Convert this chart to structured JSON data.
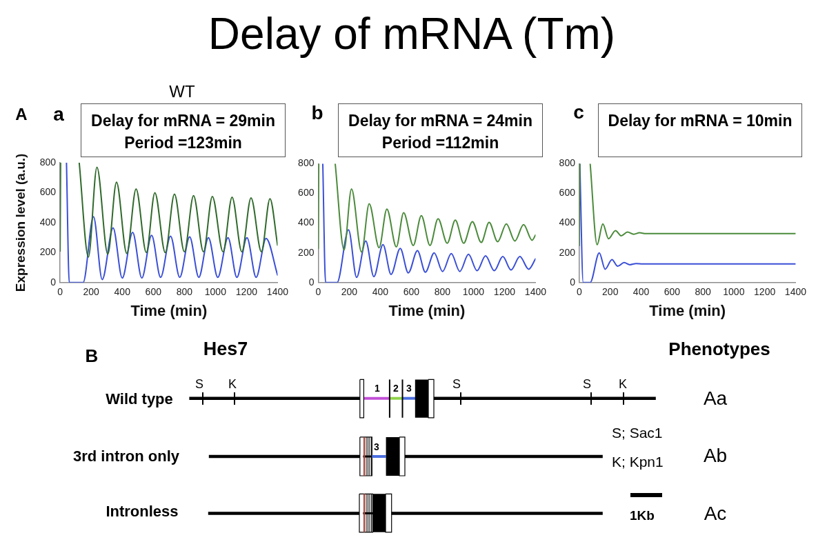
{
  "chart_data": [
    {
      "type": "other",
      "title": "Delay of mRNA (Tm)"
    },
    {
      "type": "line",
      "title": "Delay for mRNA = 29min",
      "subtitle": "Period =123min",
      "xlabel": "Time (min)",
      "ylabel": "Expression level (a.u.)",
      "annotations": [
        "WT",
        "A",
        "a"
      ],
      "xlim": [
        0,
        1400
      ],
      "xticks": [
        0,
        200,
        400,
        600,
        800,
        1000,
        1200,
        1400
      ],
      "ylim": [
        0,
        800
      ],
      "yticks": [
        0,
        200,
        400,
        600,
        800
      ],
      "series": [
        {
          "color": "#2f6a2a",
          "x": [
            0,
            3,
            60,
            123,
            182,
            237,
            307,
            363,
            429,
            489,
            555,
            610,
            677,
            736,
            800,
            859,
            923,
            980,
            1049,
            1107,
            1170,
            1229,
            1296,
            1351,
            1400
          ],
          "values": [
            210,
            800,
            null,
            800,
            170,
            770,
            190,
            670,
            195,
            625,
            200,
            600,
            200,
            590,
            205,
            580,
            205,
            575,
            205,
            570,
            205,
            565,
            205,
            560,
            250
          ]
        },
        {
          "color": "#3a4fd6",
          "x": [
            41,
            59,
            148,
            215,
            271,
            341,
            400,
            467,
            526,
            589,
            647,
            711,
            770,
            834,
            893,
            955,
            1015,
            1081,
            1138,
            1203,
            1262,
            1326,
            1400
          ],
          "values": [
            800,
            0,
            0,
            440,
            20,
            365,
            30,
            335,
            30,
            315,
            35,
            310,
            35,
            305,
            35,
            300,
            35,
            300,
            35,
            300,
            35,
            295,
            50
          ]
        }
      ]
    },
    {
      "type": "line",
      "title": "Delay for mRNA = 24min",
      "subtitle": "Period =112min",
      "xlabel": "Time (min)",
      "annotations": [
        "b"
      ],
      "xlim": [
        0,
        1400
      ],
      "xticks": [
        0,
        200,
        400,
        600,
        800,
        1000,
        1200,
        1400
      ],
      "ylim": [
        0,
        800
      ],
      "yticks": [
        0,
        200,
        400,
        600,
        800
      ],
      "series": [
        {
          "color": "#4a8a3a",
          "x": [
            0,
            3,
            50,
            109,
            166,
            214,
            279,
            328,
            392,
            442,
            503,
            550,
            612,
            664,
            720,
            772,
            831,
            883,
            937,
            993,
            1050,
            1101,
            1156,
            1212,
            1267,
            1323,
            1378,
            1400
          ],
          "values": [
            230,
            800,
            null,
            800,
            220,
            630,
            205,
            530,
            235,
            495,
            240,
            470,
            250,
            450,
            250,
            430,
            265,
            420,
            265,
            410,
            270,
            405,
            275,
            395,
            280,
            390,
            285,
            320
          ]
        },
        {
          "color": "#3a4fd6",
          "x": [
            29,
            47,
            121,
            195,
            247,
            306,
            358,
            417,
            469,
            528,
            580,
            639,
            690,
            747,
            801,
            857,
            912,
            968,
            1023,
            1078,
            1134,
            1189,
            1242,
            1299,
            1356,
            1400
          ],
          "values": [
            800,
            0,
            0,
            355,
            35,
            280,
            40,
            255,
            55,
            230,
            65,
            215,
            70,
            200,
            75,
            195,
            75,
            190,
            80,
            180,
            80,
            175,
            85,
            175,
            90,
            160
          ]
        }
      ]
    },
    {
      "type": "line",
      "title": "Delay for mRNA = 10min",
      "xlabel": "Time (min)",
      "annotations": [
        "c"
      ],
      "xlim": [
        0,
        1400
      ],
      "xticks": [
        0,
        200,
        400,
        600,
        800,
        1000,
        1200,
        1400
      ],
      "ylim": [
        0,
        800
      ],
      "yticks": [
        0,
        200,
        400,
        600,
        800
      ],
      "series": [
        {
          "color": "#4a8a3a",
          "x": [
            0,
            3,
            40,
            70,
            115,
            152,
            189,
            234,
            271,
            312,
            352,
            390,
            430,
            1400
          ],
          "values": [
            250,
            800,
            null,
            800,
            255,
            395,
            295,
            350,
            315,
            340,
            325,
            335,
            330,
            330
          ]
        },
        {
          "color": "#3a4fd6",
          "x": [
            3,
            25,
            70,
            129,
            167,
            211,
            248,
            290,
            327,
            367,
            410,
            1400
          ],
          "values": [
            800,
            0,
            0,
            200,
            90,
            155,
            110,
            135,
            120,
            128,
            125,
            125
          ]
        }
      ]
    },
    {
      "type": "other",
      "title": "Hes7",
      "annotations": [
        "B",
        "Phenotypes",
        "Wild type",
        "3rd intron only",
        "Intronless",
        "S",
        "K",
        "1",
        "2",
        "3",
        "S",
        "S",
        "K",
        "3",
        "S; Sac1",
        "K; Kpn1",
        "1Kb",
        "Aa",
        "Ab",
        "Ac"
      ]
    }
  ]
}
